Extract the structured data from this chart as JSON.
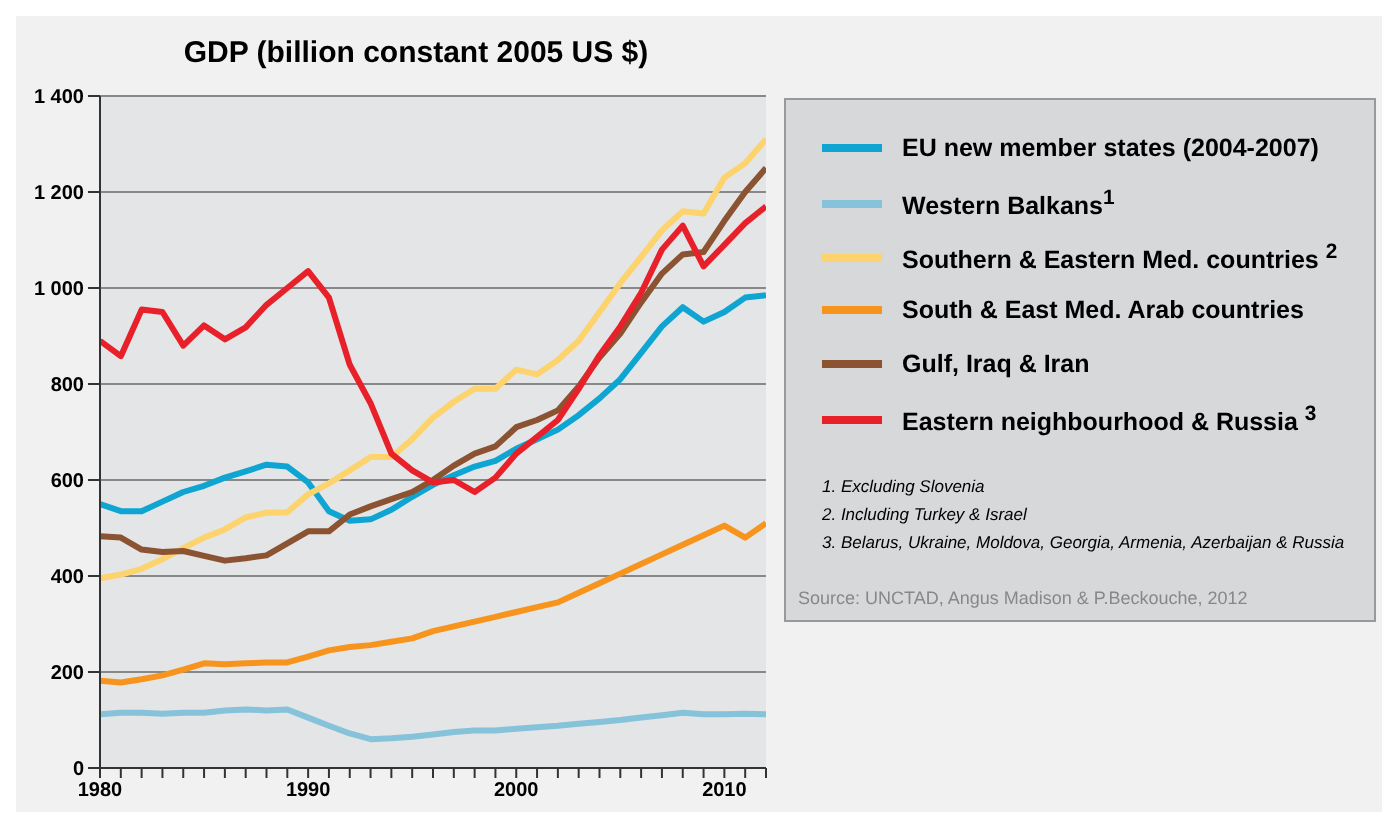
{
  "chart_data": {
    "type": "line",
    "title": "GDP (billion constant 2005 US $)",
    "x": [
      1980,
      1981,
      1982,
      1983,
      1984,
      1985,
      1986,
      1987,
      1988,
      1989,
      1990,
      1991,
      1992,
      1993,
      1994,
      1995,
      1996,
      1997,
      1998,
      1999,
      2000,
      2001,
      2002,
      2003,
      2004,
      2005,
      2006,
      2007,
      2008,
      2009,
      2010,
      2011,
      2012
    ],
    "series": [
      {
        "name": "EU new member states (2004-2007)",
        "color": "#0fa5d2",
        "values": [
          550,
          535,
          535,
          555,
          575,
          588,
          605,
          618,
          632,
          628,
          595,
          535,
          515,
          518,
          538,
          565,
          590,
          610,
          628,
          640,
          665,
          685,
          705,
          735,
          770,
          810,
          865,
          920,
          960,
          930,
          950,
          980,
          985
        ]
      },
      {
        "name": "Western Balkans$^{1}$",
        "color": "#86c2da",
        "values": [
          112,
          115,
          115,
          113,
          115,
          115,
          120,
          122,
          120,
          122,
          105,
          88,
          72,
          60,
          62,
          65,
          70,
          75,
          78,
          78,
          82,
          85,
          88,
          92,
          96,
          100,
          105,
          110,
          115,
          112,
          112,
          113,
          112
        ]
      },
      {
        "name": "Southern & Eastern Med. countries $^{2}$",
        "color": "#fdd36e",
        "values": [
          395,
          403,
          415,
          435,
          458,
          480,
          497,
          522,
          532,
          533,
          570,
          593,
          620,
          648,
          648,
          685,
          730,
          763,
          790,
          790,
          830,
          820,
          850,
          890,
          950,
          1010,
          1065,
          1120,
          1160,
          1155,
          1230,
          1260,
          1310
        ]
      },
      {
        "name": "South & East Med. Arab countries",
        "color": "#f7941d",
        "values": [
          182,
          178,
          185,
          193,
          205,
          218,
          216,
          218,
          220,
          220,
          232,
          245,
          252,
          256,
          263,
          270,
          285,
          295,
          305,
          315,
          325,
          335,
          345,
          365,
          385,
          405,
          425,
          445,
          465,
          485,
          505,
          480,
          510
        ]
      },
      {
        "name": "Gulf, Iraq & Iran",
        "color": "#8b5331",
        "values": [
          483,
          480,
          455,
          450,
          452,
          442,
          432,
          437,
          443,
          468,
          493,
          493,
          528,
          545,
          560,
          575,
          600,
          630,
          655,
          670,
          710,
          725,
          745,
          795,
          855,
          905,
          970,
          1030,
          1070,
          1075,
          1140,
          1200,
          1250
        ]
      },
      {
        "name": "Eastern neighbourhood & Russia $^{3}$",
        "color": "#e8202a",
        "values": [
          890,
          858,
          955,
          950,
          880,
          922,
          893,
          918,
          965,
          1000,
          1035,
          980,
          840,
          760,
          655,
          620,
          595,
          600,
          575,
          605,
          655,
          690,
          725,
          790,
          860,
          920,
          990,
          1080,
          1130,
          1045,
          1090,
          1135,
          1170
        ]
      }
    ],
    "xlim": [
      1980,
      2012
    ],
    "xticks": [
      1980,
      {
        "value": 1981,
        "label": null
      },
      {
        "value": 1982,
        "label": null
      },
      {
        "value": 1983,
        "label": null
      },
      {
        "value": 1984,
        "label": null
      },
      {
        "value": 1985,
        "label": null
      },
      {
        "value": 1986,
        "label": null
      },
      {
        "value": 1987,
        "label": null
      },
      {
        "value": 1988,
        "label": null
      },
      {
        "value": 1989,
        "label": null
      },
      1990,
      {
        "value": 1991,
        "label": null
      },
      {
        "value": 1992,
        "label": null
      },
      {
        "value": 1993,
        "label": null
      },
      {
        "value": 1994,
        "label": null
      },
      {
        "value": 1995,
        "label": null
      },
      {
        "value": 1996,
        "label": null
      },
      {
        "value": 1997,
        "label": null
      },
      {
        "value": 1998,
        "label": null
      },
      {
        "value": 1999,
        "label": null
      },
      2000,
      {
        "value": 2001,
        "label": null
      },
      {
        "value": 2002,
        "label": null
      },
      {
        "value": 2003,
        "label": null
      },
      {
        "value": 2004,
        "label": null
      },
      {
        "value": 2005,
        "label": null
      },
      {
        "value": 2006,
        "label": null
      },
      {
        "value": 2007,
        "label": null
      },
      {
        "value": 2008,
        "label": null
      },
      {
        "value": 2009,
        "label": null
      },
      2010,
      {
        "value": 2011,
        "label": null
      },
      {
        "value": 2012,
        "label": null
      }
    ],
    "ylim": [
      0,
      1400
    ],
    "yticks": [
      0,
      200,
      400,
      600,
      800,
      {
        "value": 1000,
        "label": "1 000"
      },
      {
        "value": 1200,
        "label": "1 200"
      },
      {
        "value": 1400,
        "label": "1 400"
      }
    ],
    "grid": "y",
    "legend": "right",
    "marker": "none",
    "line_style": "solid",
    "annotations": [
      "1. Excluding Slovenia",
      "2. Including Turkey & Israel",
      "3. Belarus, Ukraine, Moldova, Georgia, Armenia, Azerbaijan & Russia",
      "Source: UNCTAD, Angus Madison & P.Beckouche, 2012"
    ]
  }
}
